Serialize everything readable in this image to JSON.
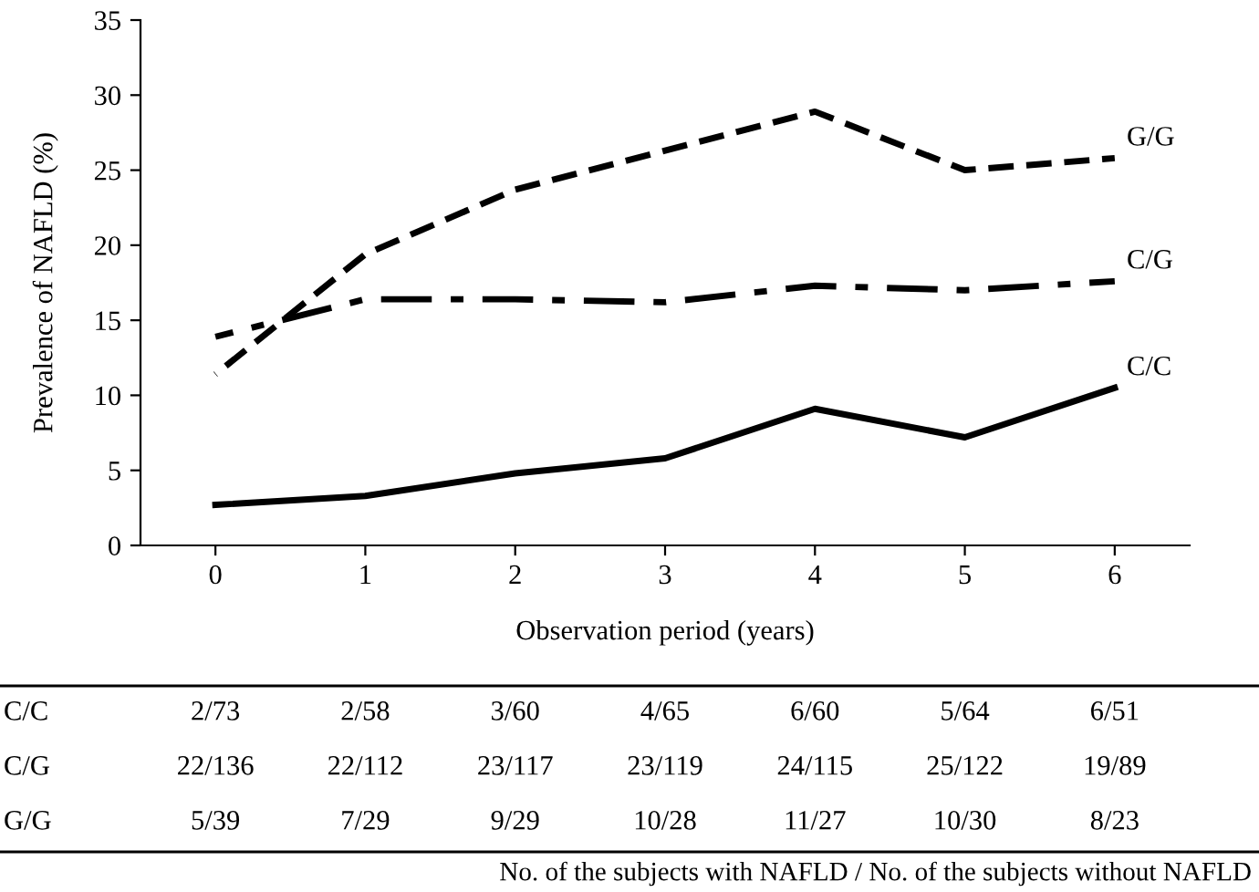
{
  "chart_data": {
    "type": "line",
    "ylabel": "Prevalence of NAFLD (%)",
    "xlabel": "Observation period (years)",
    "categories": [
      "0",
      "1",
      "2",
      "3",
      "4",
      "5",
      "6"
    ],
    "series": [
      {
        "name": "C/C",
        "color": "#000000",
        "line_style": "solid",
        "values": [
          2.7,
          3.3,
          4.8,
          5.8,
          9.1,
          7.2,
          10.5
        ]
      },
      {
        "name": "C/G",
        "color": "#000000",
        "line_style": "dashdot",
        "values": [
          13.9,
          16.4,
          16.4,
          16.2,
          17.3,
          17.0,
          17.6
        ]
      },
      {
        "name": "G/G",
        "color": "#000000",
        "line_style": "dashed",
        "values": [
          11.4,
          19.4,
          23.7,
          26.3,
          28.9,
          25.0,
          25.8
        ]
      }
    ],
    "ylim": [
      0,
      35
    ],
    "yticks": [
      0,
      5,
      10,
      15,
      20,
      25,
      30,
      35
    ],
    "grid": false,
    "legend": false,
    "marker": "none",
    "annotations": [
      "C/C",
      "2/73",
      "2/58",
      "3/60",
      "4/65",
      "6/60",
      "5/64",
      "6/51",
      "C/G",
      "22/136",
      "22/112",
      "23/117",
      "23/119",
      "24/115",
      "25/122",
      "19/89",
      "G/G",
      "5/39",
      "7/29",
      "9/29",
      "10/28",
      "11/27",
      "10/30",
      "8/23",
      "No. of the subjects with NAFLD / No. of the subjects without NAFLD"
    ]
  }
}
